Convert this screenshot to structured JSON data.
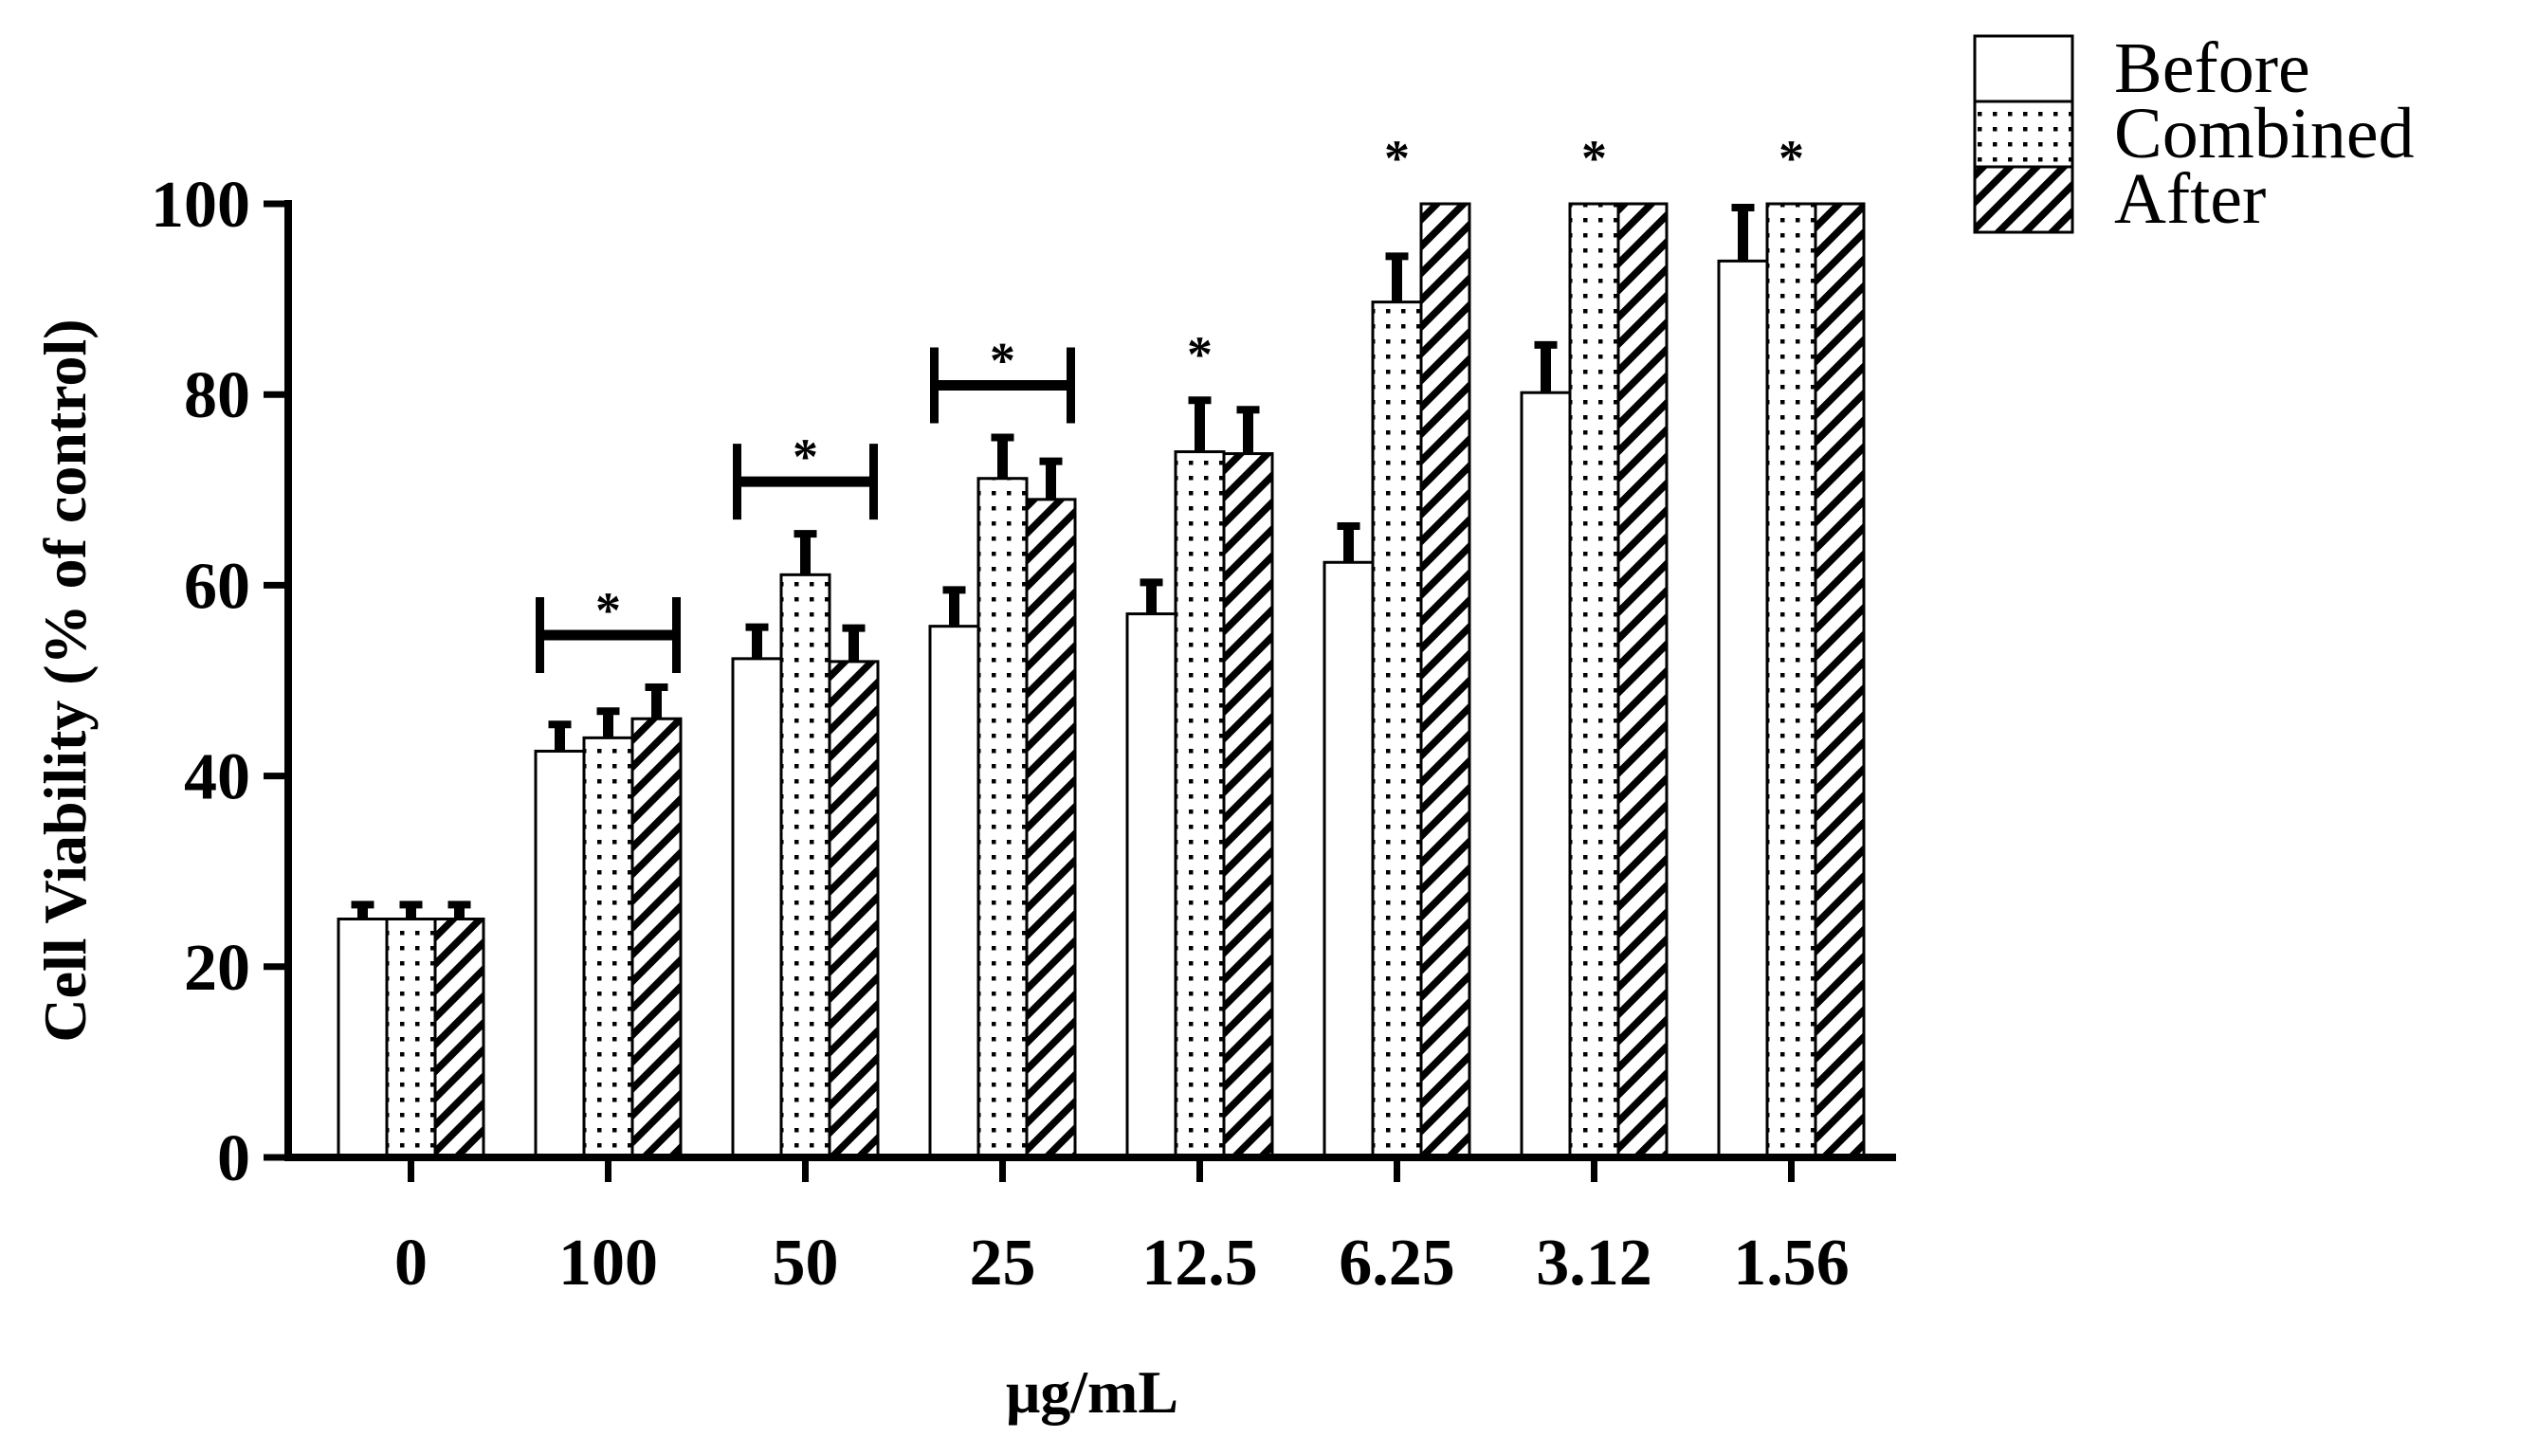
{
  "chart_data": {
    "type": "bar",
    "title": "",
    "xlabel": "μg/mL",
    "ylabel": "Cell Viability (% of control)",
    "ylim": [
      0,
      100
    ],
    "yticks": [
      0,
      20,
      40,
      60,
      80,
      100
    ],
    "categories": [
      "0",
      "100",
      "50",
      "25",
      "12.5",
      "6.25",
      "3.12",
      "1.56"
    ],
    "series": [
      {
        "name": "Before",
        "pattern": "none",
        "values": [
          25,
          42.6,
          52.3,
          55.7,
          57.0,
          62.4,
          80.2,
          94.0
        ],
        "errors": [
          1.5,
          2.8,
          3.3,
          3.8,
          3.3,
          3.8,
          5.0,
          5.6
        ]
      },
      {
        "name": "Combined",
        "pattern": "dots",
        "values": [
          25,
          44.0,
          61.1,
          71.2,
          74.0,
          89.7,
          100,
          100
        ],
        "errors": [
          1.5,
          2.8,
          4.3,
          4.3,
          5.4,
          4.8,
          0,
          0
        ]
      },
      {
        "name": "After",
        "pattern": "diagonal",
        "values": [
          25,
          46.0,
          52.0,
          69.0,
          73.8,
          100,
          100,
          100
        ],
        "errors": [
          1.5,
          3.3,
          3.5,
          4.0,
          4.6,
          0,
          0,
          0
        ]
      }
    ],
    "significance": [
      {
        "category": "100",
        "marker": "*",
        "bracket": true
      },
      {
        "category": "50",
        "marker": "*",
        "bracket": true
      },
      {
        "category": "25",
        "marker": "*",
        "bracket": true
      },
      {
        "category": "12.5",
        "marker": "*",
        "bracket": false
      },
      {
        "category": "6.25",
        "marker": "*",
        "bracket": false
      },
      {
        "category": "3.12",
        "marker": "*",
        "bracket": false
      },
      {
        "category": "1.56",
        "marker": "*",
        "bracket": false
      }
    ],
    "legend": {
      "entries": [
        "Before",
        "Combined",
        "After"
      ],
      "position": "top-right"
    }
  }
}
